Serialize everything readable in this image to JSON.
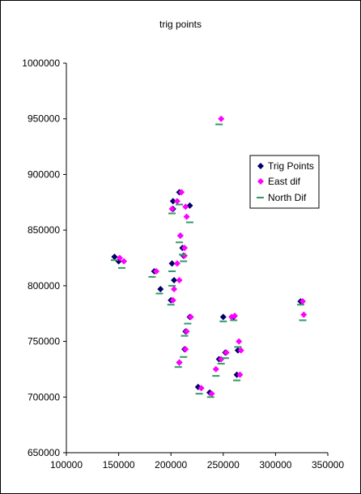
{
  "chart_data": {
    "type": "scatter",
    "title": "trig points",
    "xlim": [
      100000,
      350000
    ],
    "ylim": [
      650000,
      1000000
    ],
    "x_ticks": [
      "100000",
      "150000",
      "200000",
      "250000",
      "300000",
      "350000"
    ],
    "y_ticks": [
      "650000",
      "700000",
      "750000",
      "800000",
      "850000",
      "900000",
      "950000",
      "1000000"
    ],
    "grid": false,
    "legend_position": "right",
    "series": [
      {
        "name": "Trig Points",
        "marker": "diamond",
        "color": "#000066",
        "points": [
          [
            146000,
            826000
          ],
          [
            150000,
            822000
          ],
          [
            184000,
            813000
          ],
          [
            190000,
            797000
          ],
          [
            200000,
            787000
          ],
          [
            203000,
            805000
          ],
          [
            201000,
            820000
          ],
          [
            202000,
            869000
          ],
          [
            202000,
            876000
          ],
          [
            208000,
            884000
          ],
          [
            209000,
            845000
          ],
          [
            211000,
            834000
          ],
          [
            212000,
            827000
          ],
          [
            218000,
            872000
          ],
          [
            218000,
            772000
          ],
          [
            214000,
            759000
          ],
          [
            213000,
            743000
          ],
          [
            208000,
            731000
          ],
          [
            226000,
            709000
          ],
          [
            237000,
            704000
          ],
          [
            246000,
            734000
          ],
          [
            252000,
            740000
          ],
          [
            264000,
            742000
          ],
          [
            263000,
            720000
          ],
          [
            250000,
            772000
          ],
          [
            260000,
            772000
          ],
          [
            324000,
            786000
          ]
        ]
      },
      {
        "name": "East dif",
        "marker": "diamond",
        "color": "#ff00ff",
        "points": [
          [
            151000,
            825000
          ],
          [
            155000,
            822000
          ],
          [
            186000,
            813000
          ],
          [
            202000,
            787000
          ],
          [
            203000,
            797000
          ],
          [
            208000,
            805000
          ],
          [
            206000,
            820000
          ],
          [
            201000,
            869000
          ],
          [
            206000,
            876000
          ],
          [
            210000,
            884000
          ],
          [
            209000,
            845000
          ],
          [
            213000,
            834000
          ],
          [
            213000,
            827000
          ],
          [
            214000,
            871000
          ],
          [
            215000,
            862000
          ],
          [
            219000,
            772000
          ],
          [
            215000,
            759000
          ],
          [
            214000,
            743000
          ],
          [
            208000,
            731000
          ],
          [
            229000,
            708000
          ],
          [
            239000,
            703000
          ],
          [
            243000,
            725000
          ],
          [
            248000,
            734000
          ],
          [
            253000,
            740000
          ],
          [
            265000,
            750000
          ],
          [
            267000,
            742000
          ],
          [
            266000,
            720000
          ],
          [
            258000,
            772000
          ],
          [
            261000,
            773000
          ],
          [
            326000,
            786000
          ],
          [
            327000,
            774000
          ],
          [
            248000,
            950000
          ]
        ]
      },
      {
        "name": "North Dif",
        "marker": "dash",
        "color": "#339966",
        "points": [
          [
            146000,
            823000
          ],
          [
            153000,
            816000
          ],
          [
            182000,
            808000
          ],
          [
            189000,
            793000
          ],
          [
            200000,
            783000
          ],
          [
            201000,
            800000
          ],
          [
            201000,
            813000
          ],
          [
            201000,
            865000
          ],
          [
            208000,
            873000
          ],
          [
            208000,
            839000
          ],
          [
            211000,
            828000
          ],
          [
            212000,
            822000
          ],
          [
            218000,
            857000
          ],
          [
            216000,
            766000
          ],
          [
            213000,
            755000
          ],
          [
            212000,
            736000
          ],
          [
            207000,
            727000
          ],
          [
            227000,
            703000
          ],
          [
            238000,
            700000
          ],
          [
            243000,
            719000
          ],
          [
            248000,
            730000
          ],
          [
            252000,
            735000
          ],
          [
            264000,
            745000
          ],
          [
            263000,
            715000
          ],
          [
            250000,
            768000
          ],
          [
            260000,
            769000
          ],
          [
            324000,
            783000
          ],
          [
            326000,
            769000
          ],
          [
            246000,
            945000
          ]
        ]
      }
    ]
  }
}
